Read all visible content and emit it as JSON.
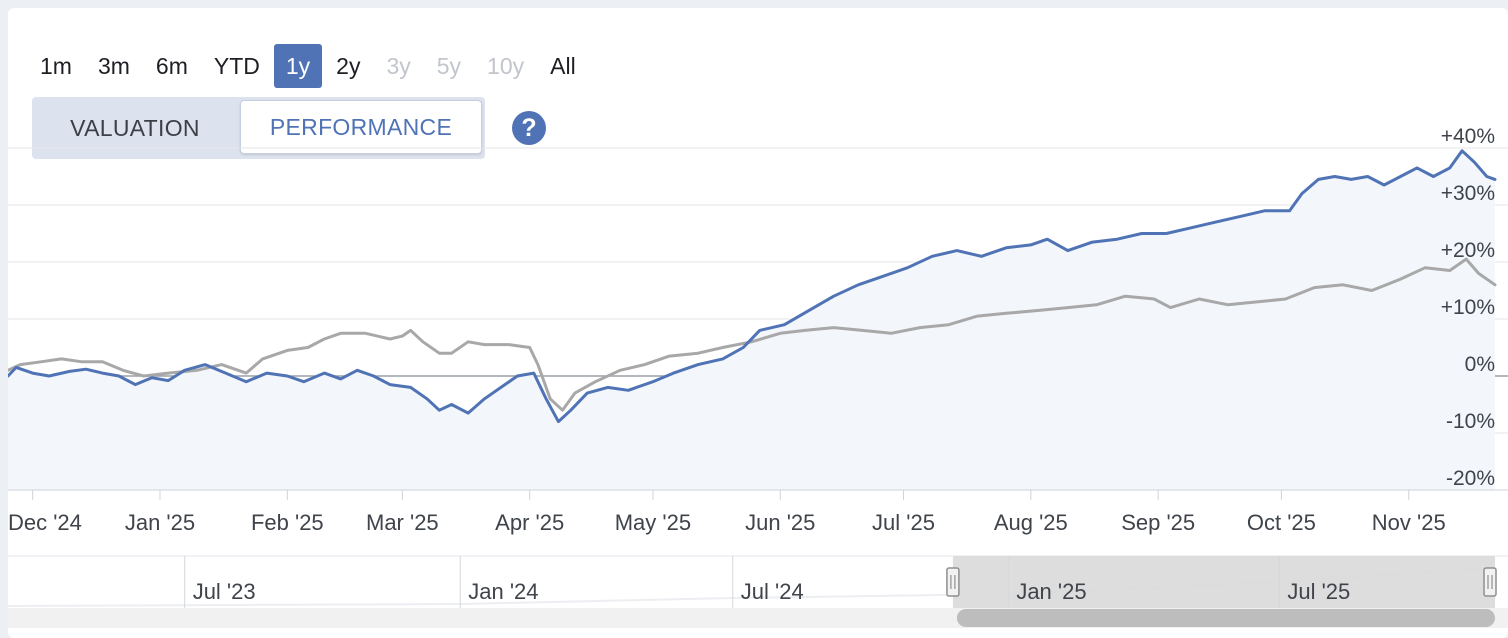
{
  "ranges": [
    {
      "label": "1m",
      "state": "normal"
    },
    {
      "label": "3m",
      "state": "normal"
    },
    {
      "label": "6m",
      "state": "normal"
    },
    {
      "label": "YTD",
      "state": "normal"
    },
    {
      "label": "1y",
      "state": "active"
    },
    {
      "label": "2y",
      "state": "normal"
    },
    {
      "label": "3y",
      "state": "disabled"
    },
    {
      "label": "5y",
      "state": "disabled"
    },
    {
      "label": "10y",
      "state": "disabled"
    },
    {
      "label": "All",
      "state": "normal"
    }
  ],
  "tabs": {
    "valuation": "VALUATION",
    "performance": "PERFORMANCE",
    "active": "performance"
  },
  "help_icon": "question-circle-icon",
  "colors": {
    "primary": "#4f73b5",
    "benchmark": "#a8a8a8",
    "area": "#f3f6fb"
  },
  "chart_data": {
    "type": "line",
    "ylim": [
      -20,
      40
    ],
    "y_ticks": [
      "-20%",
      "-10%",
      "0%",
      "+10%",
      "+20%",
      "+30%",
      "+40%"
    ],
    "y_tick_values": [
      -20,
      -10,
      0,
      10,
      20,
      30,
      40
    ],
    "x_range": [
      "2024-11-25",
      "2025-11-22"
    ],
    "x_ticks": [
      {
        "label": "Dec '24",
        "date": "2024-12-01"
      },
      {
        "label": "Jan '25",
        "date": "2025-01-01"
      },
      {
        "label": "Feb '25",
        "date": "2025-02-01"
      },
      {
        "label": "Mar '25",
        "date": "2025-03-01"
      },
      {
        "label": "Apr '25",
        "date": "2025-04-01"
      },
      {
        "label": "May '25",
        "date": "2025-05-01"
      },
      {
        "label": "Jun '25",
        "date": "2025-06-01"
      },
      {
        "label": "Jul '25",
        "date": "2025-07-01"
      },
      {
        "label": "Aug '25",
        "date": "2025-08-01"
      },
      {
        "label": "Sep '25",
        "date": "2025-09-01"
      },
      {
        "label": "Oct '25",
        "date": "2025-10-01"
      },
      {
        "label": "Nov '25",
        "date": "2025-11-01"
      }
    ],
    "grid": true,
    "series": [
      {
        "role": "primary",
        "color": "#4f73b5",
        "points": [
          [
            "2024-11-25",
            0
          ],
          [
            "2024-11-27",
            1.5
          ],
          [
            "2024-12-01",
            0.5
          ],
          [
            "2024-12-05",
            0
          ],
          [
            "2024-12-10",
            0.8
          ],
          [
            "2024-12-14",
            1.2
          ],
          [
            "2024-12-18",
            0.5
          ],
          [
            "2024-12-22",
            0
          ],
          [
            "2024-12-26",
            -1.5
          ],
          [
            "2024-12-30",
            -0.3
          ],
          [
            "2025-01-03",
            -0.8
          ],
          [
            "2025-01-07",
            1
          ],
          [
            "2025-01-12",
            2
          ],
          [
            "2025-01-17",
            0.5
          ],
          [
            "2025-01-22",
            -1
          ],
          [
            "2025-01-27",
            0.5
          ],
          [
            "2025-02-01",
            0
          ],
          [
            "2025-02-05",
            -1
          ],
          [
            "2025-02-10",
            0.5
          ],
          [
            "2025-02-14",
            -0.5
          ],
          [
            "2025-02-18",
            1
          ],
          [
            "2025-02-22",
            0
          ],
          [
            "2025-02-26",
            -1.5
          ],
          [
            "2025-03-03",
            -2
          ],
          [
            "2025-03-07",
            -4
          ],
          [
            "2025-03-10",
            -6
          ],
          [
            "2025-03-13",
            -5
          ],
          [
            "2025-03-17",
            -6.5
          ],
          [
            "2025-03-21",
            -4
          ],
          [
            "2025-03-25",
            -2
          ],
          [
            "2025-03-29",
            0
          ],
          [
            "2025-04-02",
            0.5
          ],
          [
            "2025-04-05",
            -4
          ],
          [
            "2025-04-08",
            -8
          ],
          [
            "2025-04-11",
            -6
          ],
          [
            "2025-04-15",
            -3
          ],
          [
            "2025-04-20",
            -2
          ],
          [
            "2025-04-25",
            -2.5
          ],
          [
            "2025-05-01",
            -1
          ],
          [
            "2025-05-06",
            0.5
          ],
          [
            "2025-05-12",
            2
          ],
          [
            "2025-05-18",
            3
          ],
          [
            "2025-05-23",
            5
          ],
          [
            "2025-05-27",
            8
          ],
          [
            "2025-06-02",
            9
          ],
          [
            "2025-06-08",
            11.5
          ],
          [
            "2025-06-14",
            14
          ],
          [
            "2025-06-20",
            16
          ],
          [
            "2025-06-26",
            17.5
          ],
          [
            "2025-07-02",
            19
          ],
          [
            "2025-07-08",
            21
          ],
          [
            "2025-07-14",
            22
          ],
          [
            "2025-07-20",
            21
          ],
          [
            "2025-07-26",
            22.5
          ],
          [
            "2025-08-01",
            23
          ],
          [
            "2025-08-05",
            24
          ],
          [
            "2025-08-10",
            22
          ],
          [
            "2025-08-16",
            23.5
          ],
          [
            "2025-08-22",
            24
          ],
          [
            "2025-08-28",
            25
          ],
          [
            "2025-09-03",
            25
          ],
          [
            "2025-09-09",
            26
          ],
          [
            "2025-09-15",
            27
          ],
          [
            "2025-09-21",
            28
          ],
          [
            "2025-09-27",
            29
          ],
          [
            "2025-10-03",
            29
          ],
          [
            "2025-10-06",
            32
          ],
          [
            "2025-10-10",
            34.5
          ],
          [
            "2025-10-14",
            35
          ],
          [
            "2025-10-18",
            34.5
          ],
          [
            "2025-10-22",
            35
          ],
          [
            "2025-10-26",
            33.5
          ],
          [
            "2025-10-30",
            35
          ],
          [
            "2025-11-03",
            36.5
          ],
          [
            "2025-11-07",
            35
          ],
          [
            "2025-11-11",
            36.5
          ],
          [
            "2025-11-14",
            39.5
          ],
          [
            "2025-11-17",
            37.5
          ],
          [
            "2025-11-20",
            35
          ],
          [
            "2025-11-22",
            34.5
          ]
        ]
      },
      {
        "role": "benchmark",
        "color": "#a8a8a8",
        "points": [
          [
            "2024-11-25",
            1
          ],
          [
            "2024-11-28",
            2
          ],
          [
            "2024-12-03",
            2.5
          ],
          [
            "2024-12-08",
            3
          ],
          [
            "2024-12-13",
            2.5
          ],
          [
            "2024-12-18",
            2.5
          ],
          [
            "2024-12-23",
            1
          ],
          [
            "2024-12-28",
            0
          ],
          [
            "2025-01-03",
            0.5
          ],
          [
            "2025-01-10",
            1
          ],
          [
            "2025-01-16",
            2
          ],
          [
            "2025-01-22",
            0.5
          ],
          [
            "2025-01-26",
            3
          ],
          [
            "2025-02-01",
            4.5
          ],
          [
            "2025-02-06",
            5
          ],
          [
            "2025-02-10",
            6.5
          ],
          [
            "2025-02-14",
            7.5
          ],
          [
            "2025-02-20",
            7.5
          ],
          [
            "2025-02-26",
            6.5
          ],
          [
            "2025-03-01",
            7
          ],
          [
            "2025-03-03",
            8
          ],
          [
            "2025-03-06",
            6
          ],
          [
            "2025-03-10",
            4
          ],
          [
            "2025-03-13",
            4
          ],
          [
            "2025-03-17",
            6
          ],
          [
            "2025-03-21",
            5.5
          ],
          [
            "2025-03-27",
            5.5
          ],
          [
            "2025-04-01",
            5
          ],
          [
            "2025-04-03",
            2
          ],
          [
            "2025-04-06",
            -4
          ],
          [
            "2025-04-09",
            -6
          ],
          [
            "2025-04-12",
            -3
          ],
          [
            "2025-04-17",
            -1
          ],
          [
            "2025-04-23",
            1
          ],
          [
            "2025-04-29",
            2
          ],
          [
            "2025-05-05",
            3.5
          ],
          [
            "2025-05-12",
            4
          ],
          [
            "2025-05-18",
            5
          ],
          [
            "2025-05-25",
            6
          ],
          [
            "2025-06-01",
            7.5
          ],
          [
            "2025-06-07",
            8
          ],
          [
            "2025-06-14",
            8.5
          ],
          [
            "2025-06-21",
            8
          ],
          [
            "2025-06-28",
            7.5
          ],
          [
            "2025-07-05",
            8.5
          ],
          [
            "2025-07-12",
            9
          ],
          [
            "2025-07-19",
            10.5
          ],
          [
            "2025-07-26",
            11
          ],
          [
            "2025-08-03",
            11.5
          ],
          [
            "2025-08-10",
            12
          ],
          [
            "2025-08-17",
            12.5
          ],
          [
            "2025-08-24",
            14
          ],
          [
            "2025-08-31",
            13.5
          ],
          [
            "2025-09-04",
            12
          ],
          [
            "2025-09-11",
            13.5
          ],
          [
            "2025-09-18",
            12.5
          ],
          [
            "2025-09-25",
            13
          ],
          [
            "2025-10-02",
            13.5
          ],
          [
            "2025-10-09",
            15.5
          ],
          [
            "2025-10-16",
            16
          ],
          [
            "2025-10-23",
            15
          ],
          [
            "2025-10-30",
            17
          ],
          [
            "2025-11-05",
            19
          ],
          [
            "2025-11-11",
            18.5
          ],
          [
            "2025-11-15",
            20.5
          ],
          [
            "2025-11-18",
            18
          ],
          [
            "2025-11-22",
            16
          ]
        ]
      }
    ]
  },
  "navigator": {
    "range": [
      "2023-03-05",
      "2025-11-22"
    ],
    "selected": [
      "2024-11-25",
      "2025-11-22"
    ],
    "ticks": [
      {
        "label": "Jul '23",
        "date": "2023-07-01"
      },
      {
        "label": "Jan '24",
        "date": "2024-01-01"
      },
      {
        "label": "Jul '24",
        "date": "2024-07-01"
      },
      {
        "label": "Jan '25",
        "date": "2025-01-01"
      },
      {
        "label": "Jul '25",
        "date": "2025-07-01"
      }
    ]
  }
}
